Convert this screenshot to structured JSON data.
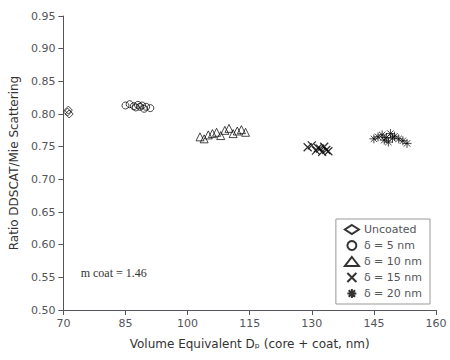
{
  "chart_data": {
    "type": "scatter",
    "xlabel": "Volume Equivalent Dₚ (core + coat, nm)",
    "ylabel": "Ratio DDSCAT/Mie Scattering",
    "annotation": "m coat = 1.46",
    "xlim": [
      70,
      160
    ],
    "ylim": [
      0.5,
      0.95
    ],
    "xticks": [
      70,
      85,
      100,
      115,
      130,
      145,
      160
    ],
    "yticks": [
      {
        "value": 0.5,
        "label": "0.50"
      },
      0.55,
      {
        "value": 0.6,
        "label": "0.60"
      },
      0.65,
      {
        "value": 0.7,
        "label": "0.70"
      },
      0.75,
      {
        "value": 0.8,
        "label": "0.80"
      },
      0.85,
      {
        "value": 0.9,
        "label": "0.90"
      },
      0.95
    ],
    "grid": false,
    "legend": "lower right",
    "color": "black",
    "series": [
      {
        "name": "Uncoated",
        "marker": "diamond",
        "x": [
          71.0,
          71.2,
          71.4
        ],
        "values": [
          0.803,
          0.806,
          0.8
        ]
      },
      {
        "name": "δ = 5 nm",
        "marker": "circle",
        "x": [
          85,
          86,
          87,
          87.5,
          88,
          88.5,
          89,
          89.5,
          90,
          91
        ],
        "values": [
          0.813,
          0.815,
          0.812,
          0.81,
          0.814,
          0.811,
          0.813,
          0.808,
          0.811,
          0.809
        ]
      },
      {
        "name": "δ = 10 nm",
        "marker": "triangle",
        "x": [
          103,
          104,
          105,
          106,
          107,
          108,
          109,
          110,
          111,
          112,
          113,
          114
        ],
        "values": [
          0.765,
          0.762,
          0.768,
          0.77,
          0.772,
          0.767,
          0.775,
          0.778,
          0.77,
          0.774,
          0.776,
          0.772
        ]
      },
      {
        "name": "δ = 15 nm",
        "marker": "x",
        "x": [
          129,
          130,
          131,
          131.5,
          132,
          132.5,
          133,
          133.5,
          134
        ],
        "values": [
          0.749,
          0.752,
          0.744,
          0.748,
          0.747,
          0.742,
          0.75,
          0.745,
          0.743
        ]
      },
      {
        "name": "δ = 20 nm",
        "marker": "asterisk",
        "x": [
          145,
          146,
          147,
          147.5,
          148,
          148.5,
          149,
          149.5,
          150,
          151,
          152,
          153
        ],
        "values": [
          0.762,
          0.765,
          0.768,
          0.76,
          0.764,
          0.757,
          0.77,
          0.763,
          0.766,
          0.762,
          0.759,
          0.755
        ]
      }
    ]
  }
}
